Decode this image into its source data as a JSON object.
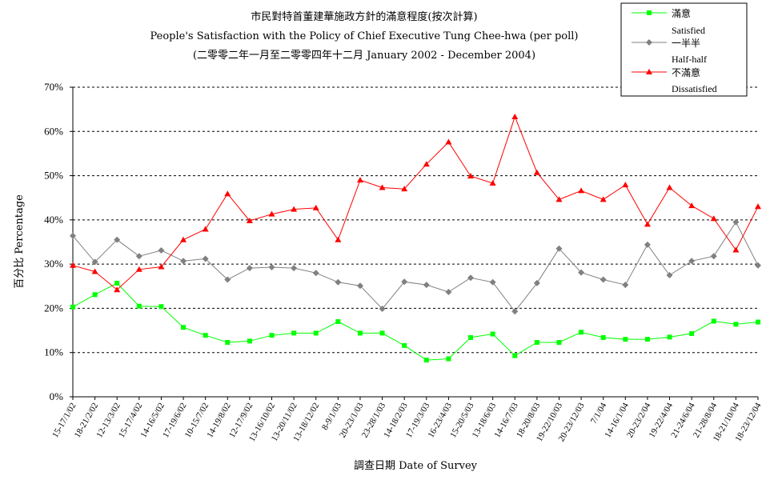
{
  "chart_data": {
    "type": "line",
    "title": "市民對特首董建華施政方針的滿意程度(按次計算)",
    "subtitle": "People's Satisfaction with the Policy of Chief Executive Tung Chee-hwa (per poll)",
    "period": "(二零零二年一月至二零零四年十二月 January 2002 - December 2004)",
    "xlabel": "調查日期 Date of Survey",
    "ylabel": "百分比 Percentage",
    "ylim": [
      0,
      70
    ],
    "yticks": [
      "0%",
      "10%",
      "20%",
      "30%",
      "40%",
      "50%",
      "60%",
      "70%"
    ],
    "grid": "horizontal-dashed",
    "legend_position": "top-right",
    "categories": [
      "15-17/1/02",
      "18-21/2/02",
      "12-13/3/02",
      "15-17/4/02",
      "14-16/5/02",
      "17-19/6/02",
      "10-15/7/02",
      "14-19/8/02",
      "12-17/9/02",
      "13-16/10/02",
      "13-20/11/02",
      "13-18/12/02",
      "8-9/1/03",
      "20-23/1/03",
      "23-28/1/03",
      "14-18/2/03",
      "17-19/3/03",
      "16-23/4/03",
      "15-20/5/03",
      "13-18/6/03",
      "14-16/7/03",
      "18-20/8/03",
      "19-22/10/03",
      "20-23/12/03",
      "7/1/04",
      "14-16/1/04",
      "20-23/2/04",
      "19-22/4/04",
      "21-24/6/04",
      "21-28/8/04",
      "18-21/10/04",
      "18-23/12/04"
    ],
    "series": [
      {
        "name": "滿意",
        "name_en": "Satisfied",
        "color": "#00ff00",
        "marker": "square",
        "values": [
          20.3,
          23.1,
          25.7,
          20.5,
          20.4,
          15.7,
          13.9,
          12.3,
          12.6,
          13.9,
          14.4,
          14.4,
          17.0,
          14.4,
          14.4,
          11.6,
          8.3,
          8.6,
          13.4,
          14.2,
          9.3,
          12.3,
          12.3,
          14.6,
          13.4,
          13.0,
          13.0,
          13.5,
          14.3,
          17.1,
          16.4,
          16.9
        ]
      },
      {
        "name": "一半半",
        "name_en": "Half-half",
        "color": "#808080",
        "marker": "diamond",
        "values": [
          36.4,
          30.5,
          35.5,
          31.8,
          33.1,
          30.7,
          31.2,
          26.5,
          29.1,
          29.3,
          29.1,
          28.0,
          25.9,
          25.1,
          19.9,
          26.0,
          25.3,
          23.7,
          26.9,
          25.9,
          19.3,
          25.7,
          33.5,
          28.1,
          26.5,
          25.3,
          34.4,
          27.5,
          30.7,
          31.8,
          39.5,
          29.7
        ]
      },
      {
        "name": "不滿意",
        "name_en": "Dissatisfied",
        "color": "#ff0000",
        "marker": "triangle",
        "values": [
          29.7,
          28.3,
          24.2,
          28.8,
          29.4,
          35.5,
          37.9,
          45.9,
          39.8,
          41.3,
          42.4,
          42.7,
          35.5,
          49.0,
          47.3,
          47.0,
          52.6,
          57.6,
          49.9,
          48.3,
          63.3,
          50.7,
          44.6,
          46.6,
          44.6,
          47.9,
          39.0,
          47.3,
          43.2,
          40.3,
          33.2,
          43.0
        ]
      }
    ]
  }
}
